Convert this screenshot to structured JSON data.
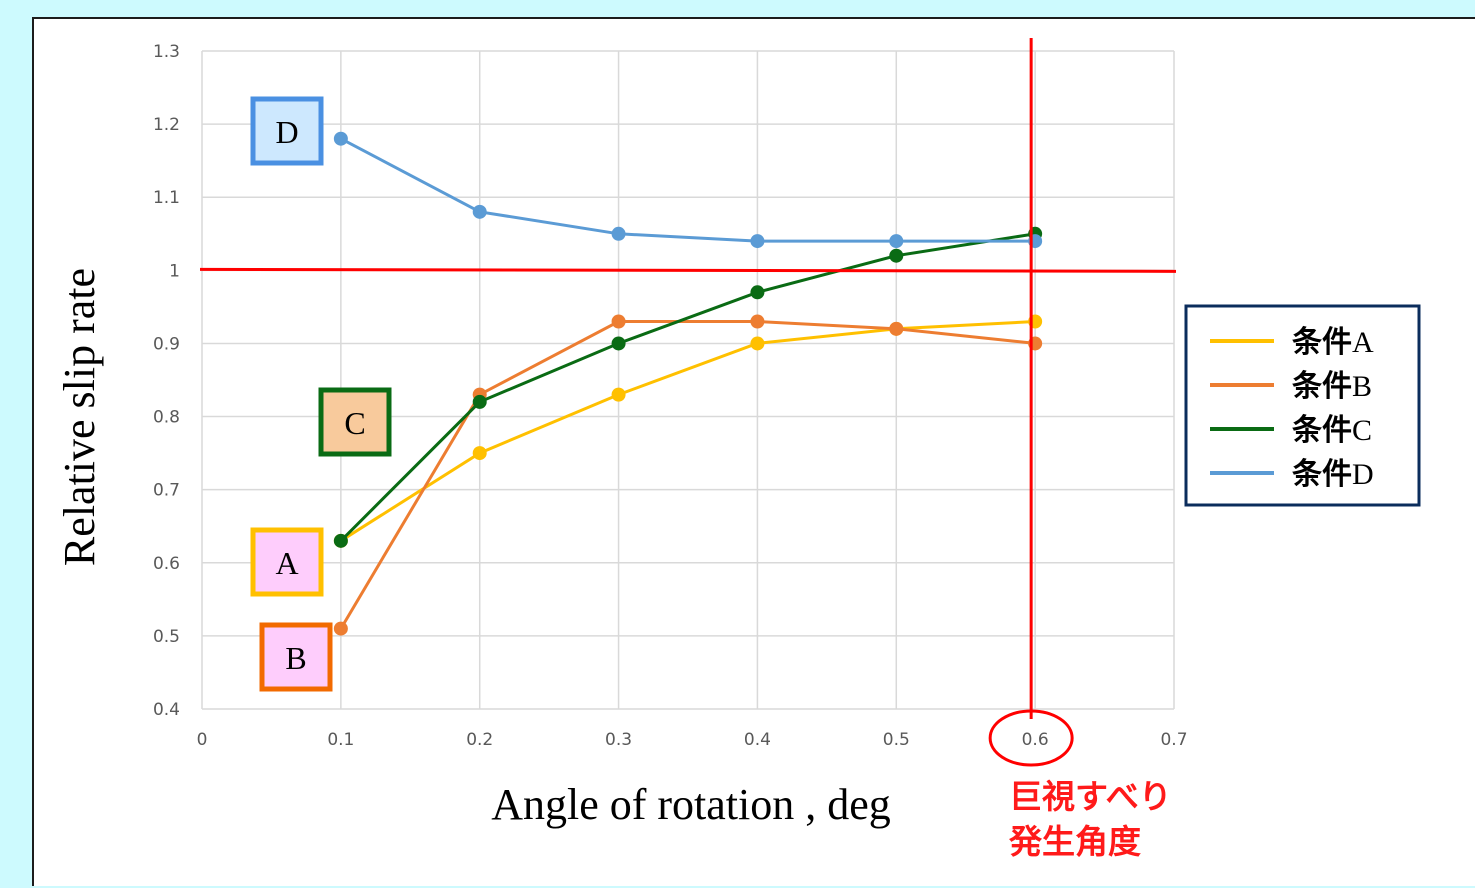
{
  "colors": {
    "background": "#cdfafe",
    "reference": "#ff0000",
    "note": "#ff1a1a"
  },
  "chart_data": {
    "type": "line",
    "xlabel": "Angle of rotation , deg",
    "ylabel": "Relative slip rate",
    "xlim": [
      0,
      0.7
    ],
    "ylim": [
      0.4,
      1.3
    ],
    "x_ticks": [
      "0",
      "0.1",
      "0.2",
      "0.3",
      "0.4",
      "0.5",
      "0.6",
      "0.7"
    ],
    "y_ticks": [
      "0.4",
      "0.5",
      "0.6",
      "0.7",
      "0.8",
      "0.9",
      "1",
      "1.1",
      "1.2",
      "1.3"
    ],
    "grid": true,
    "legend_position": "right",
    "x": [
      0.1,
      0.2,
      0.3,
      0.4,
      0.5,
      0.6
    ],
    "series": [
      {
        "name": "条件A",
        "values": [
          0.63,
          0.75,
          0.83,
          0.9,
          0.92,
          0.93
        ],
        "color": "#ffc000"
      },
      {
        "name": "条件B",
        "values": [
          0.51,
          0.83,
          0.93,
          0.93,
          0.92,
          0.9
        ],
        "color": "#ed7d31"
      },
      {
        "name": "条件C",
        "values": [
          0.63,
          0.82,
          0.9,
          0.97,
          1.02,
          1.05
        ],
        "color": "#0a6b14"
      },
      {
        "name": "条件D",
        "values": [
          1.18,
          1.08,
          1.05,
          1.04,
          1.04,
          1.04
        ],
        "color": "#5b9bd5"
      }
    ],
    "reference_lines": {
      "y": 1,
      "x": 0.6
    },
    "highlighted_tick": "0.6",
    "annotations": [
      {
        "series": "条件A",
        "label": "A",
        "fill": "#fecdfc",
        "border": "#ffc000"
      },
      {
        "series": "条件B",
        "label": "B",
        "fill": "#fecdfc",
        "border": "#f26a00"
      },
      {
        "series": "条件C",
        "label": "C",
        "fill": "#f8ca9c",
        "border": "#0a6b14"
      },
      {
        "series": "条件D",
        "label": "D",
        "fill": "#cde8fe",
        "border": "#4a90e2"
      }
    ],
    "note": [
      "巨視すべり",
      "発生角度"
    ]
  }
}
